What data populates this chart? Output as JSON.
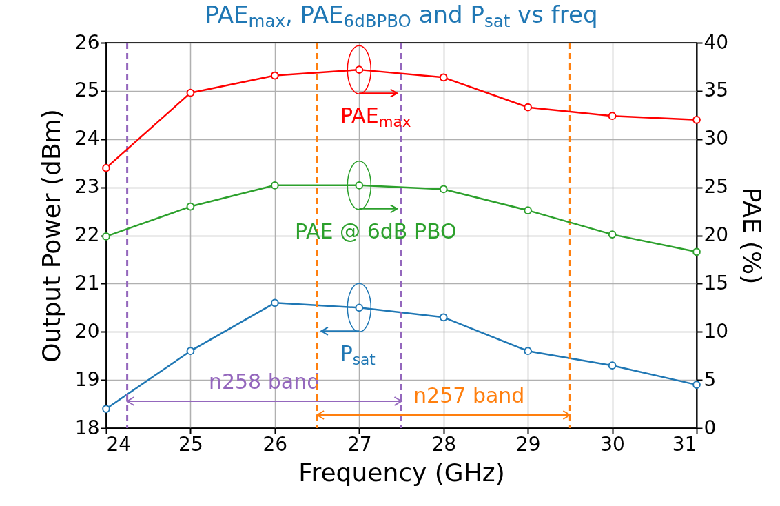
{
  "chart_data": {
    "type": "line",
    "title": "PAE$_{max}$, PAE$_{6dBPBO}$ and P$_{sat}$ vs freq",
    "xlabel": "Frequency (GHz)",
    "ylabel": "Output Power (dBm)",
    "y2label": "PAE (%)",
    "x": [
      24,
      25,
      26,
      27,
      28,
      29,
      30,
      31
    ],
    "series": [
      {
        "name": "P$_{sat}$",
        "color": "#1f77b4",
        "values": [
          18.4,
          19.6,
          20.6,
          20.5,
          20.3,
          19.6,
          19.3,
          18.9
        ]
      },
      {
        "name": "PAE$_{max}$",
        "color": "#ff0000",
        "axis": "y2",
        "values": [
          27.0,
          34.8,
          36.6,
          37.2,
          36.4,
          33.3,
          32.4,
          32.0
        ]
      },
      {
        "name": "PAE @ 6dB PBO",
        "color": "#2ca02c",
        "axis": "y2",
        "values": [
          19.9,
          23.0,
          25.2,
          25.2,
          24.8,
          22.6,
          20.1,
          18.3
        ]
      }
    ],
    "xlim": [
      24,
      31
    ],
    "xticks": [
      24,
      25,
      26,
      27,
      28,
      29,
      30,
      31
    ],
    "ylim": [
      18,
      26
    ],
    "yticks": [
      18,
      19,
      20,
      21,
      22,
      23,
      24,
      25,
      26
    ],
    "y2lim": [
      0,
      40
    ],
    "y2ticks": [
      0,
      5,
      10,
      15,
      20,
      25,
      30,
      35,
      40
    ],
    "grid": true,
    "legend": "center",
    "marker": "circle",
    "line_style": "solid",
    "ref_lines": [
      {
        "axis": "x",
        "value": 24.25,
        "label": "n258 band",
        "color": "#9467bd",
        "line_style": "dashed"
      },
      {
        "axis": "x",
        "value": 27.5,
        "color": "#9467bd",
        "line_style": "dashed"
      },
      {
        "axis": "x",
        "value": 26.5,
        "label": "n257 band",
        "color": "#ff7f0e",
        "line_style": "dashed"
      },
      {
        "axis": "x",
        "value": 29.5,
        "color": "#ff7f0e",
        "line_style": "dashed"
      }
    ]
  }
}
